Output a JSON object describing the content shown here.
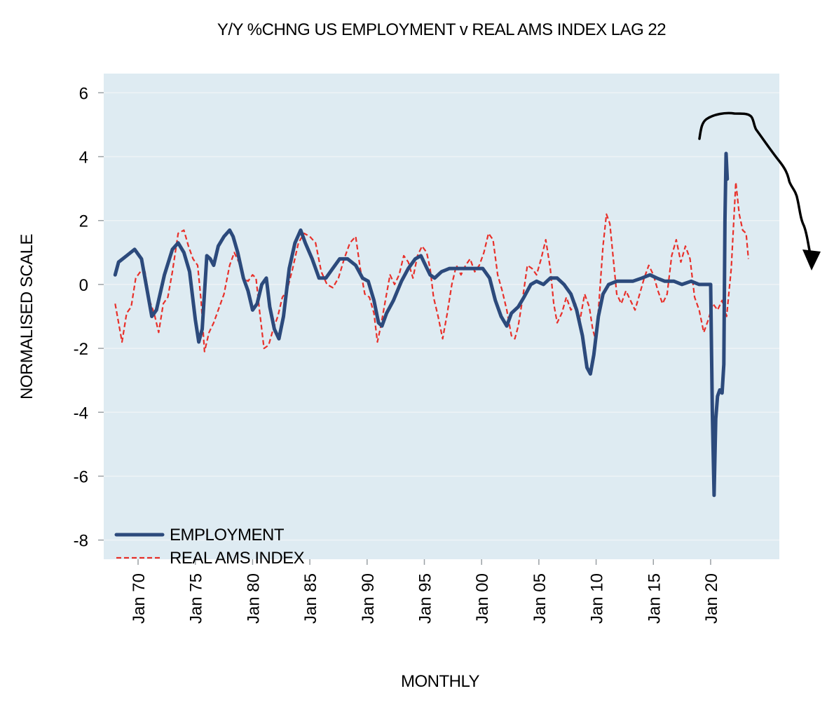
{
  "chart_data": {
    "type": "line",
    "title": "Y/Y %CHNG US EMPLOYMENT v REAL AMS INDEX LAG 22",
    "xlabel": "MONTHLY",
    "ylabel": "NORMALISED SCALE",
    "ylim": [
      -8.6,
      6.6
    ],
    "xlim": [
      1967,
      2026
    ],
    "yticks": [
      6,
      4,
      2,
      0,
      -2,
      -4,
      -6,
      -8
    ],
    "ytick_labels": [
      "6",
      "4",
      "2",
      "0",
      "-2",
      "-4",
      "-6",
      "-8"
    ],
    "xticks": [
      1970,
      1975,
      1980,
      1985,
      1990,
      1995,
      2000,
      2005,
      2010,
      2015,
      2020
    ],
    "xtick_labels": [
      "Jan 70",
      "Jan 75",
      "Jan 80",
      "Jan 85",
      "Jan 90",
      "Jan 95",
      "Jan 00",
      "Jan 05",
      "Jan 10",
      "Jan 15",
      "Jan 20"
    ],
    "grid": "horizontal",
    "background": "#deebf2",
    "legend_position": "bottom-left",
    "annotation": "hand-drawn black arrow pointing down (top-right)",
    "series": [
      {
        "name": "EMPLOYMENT",
        "color": "#2c4a7c",
        "style": "solid",
        "x": [
          1968.0,
          1968.3,
          1969.0,
          1969.7,
          1970.3,
          1970.8,
          1971.2,
          1971.6,
          1972.3,
          1973.0,
          1973.5,
          1974.0,
          1974.5,
          1975.0,
          1975.3,
          1975.6,
          1976.0,
          1976.3,
          1976.6,
          1977.0,
          1977.5,
          1978.0,
          1978.3,
          1978.7,
          1979.2,
          1979.6,
          1980.0,
          1980.4,
          1980.8,
          1981.2,
          1981.5,
          1981.9,
          1982.3,
          1982.7,
          1983.2,
          1983.7,
          1984.2,
          1984.6,
          1985.2,
          1985.8,
          1986.4,
          1987.0,
          1987.6,
          1988.3,
          1989.0,
          1989.6,
          1990.1,
          1990.6,
          1991.0,
          1991.3,
          1991.7,
          1992.3,
          1993.0,
          1993.6,
          1994.2,
          1994.7,
          1995.1,
          1995.5,
          1995.9,
          1996.5,
          1997.2,
          1998.0,
          1998.7,
          1999.4,
          2000.1,
          2000.7,
          2001.2,
          2001.7,
          2002.2,
          2002.6,
          2003.2,
          2003.7,
          2004.3,
          2004.8,
          2005.4,
          2006.0,
          2006.6,
          2007.2,
          2007.8,
          2008.3,
          2008.8,
          2009.2,
          2009.5,
          2009.8,
          2010.2,
          2010.6,
          2011.1,
          2011.8,
          2012.5,
          2013.2,
          2014.0,
          2014.7,
          2015.3,
          2016.0,
          2016.8,
          2017.5,
          2018.3,
          2019.0,
          2019.6,
          2020.0,
          2020.15,
          2020.3,
          2020.45,
          2020.6,
          2020.8,
          2021.0,
          2021.15,
          2021.25,
          2021.35,
          2021.45
        ],
        "values": [
          0.3,
          0.7,
          0.9,
          1.1,
          0.8,
          -0.2,
          -1.0,
          -0.8,
          0.3,
          1.1,
          1.3,
          1.0,
          0.4,
          -1.1,
          -1.8,
          -1.4,
          0.9,
          0.8,
          0.6,
          1.2,
          1.5,
          1.7,
          1.5,
          1.0,
          0.2,
          -0.2,
          -0.8,
          -0.6,
          0.0,
          0.2,
          -0.7,
          -1.4,
          -1.7,
          -1.0,
          0.5,
          1.3,
          1.7,
          1.3,
          0.8,
          0.2,
          0.2,
          0.5,
          0.8,
          0.8,
          0.6,
          0.2,
          0.1,
          -0.5,
          -1.2,
          -1.3,
          -0.9,
          -0.5,
          0.1,
          0.5,
          0.8,
          0.9,
          0.6,
          0.3,
          0.2,
          0.4,
          0.5,
          0.5,
          0.5,
          0.5,
          0.5,
          0.2,
          -0.5,
          -1.0,
          -1.3,
          -0.9,
          -0.7,
          -0.4,
          0.0,
          0.1,
          0.0,
          0.2,
          0.2,
          0.0,
          -0.3,
          -0.8,
          -1.6,
          -2.6,
          -2.8,
          -2.2,
          -1.0,
          -0.3,
          0.0,
          0.1,
          0.1,
          0.1,
          0.2,
          0.3,
          0.2,
          0.1,
          0.1,
          0.0,
          0.1,
          0.0,
          0.0,
          0.0,
          -4.0,
          -6.6,
          -4.2,
          -3.5,
          -3.3,
          -3.4,
          -2.5,
          2.0,
          4.1,
          3.3
        ]
      },
      {
        "name": "REAL AMS INDEX",
        "color": "#e8302a",
        "style": "dashed",
        "x": [
          1968.0,
          1968.3,
          1968.6,
          1969.0,
          1969.4,
          1969.8,
          1970.2,
          1970.6,
          1971.0,
          1971.4,
          1971.8,
          1972.2,
          1972.6,
          1973.0,
          1973.5,
          1974.0,
          1974.4,
          1974.8,
          1975.2,
          1975.5,
          1975.8,
          1976.2,
          1976.6,
          1977.0,
          1977.5,
          1978.0,
          1978.4,
          1978.8,
          1979.2,
          1979.6,
          1980.0,
          1980.3,
          1980.6,
          1981.0,
          1981.4,
          1981.8,
          1982.2,
          1982.6,
          1983.0,
          1983.5,
          1984.0,
          1984.5,
          1985.0,
          1985.5,
          1986.0,
          1986.5,
          1987.0,
          1987.5,
          1988.0,
          1988.5,
          1989.0,
          1989.4,
          1989.8,
          1990.2,
          1990.6,
          1990.9,
          1991.2,
          1991.6,
          1992.0,
          1992.4,
          1992.8,
          1993.2,
          1993.6,
          1994.0,
          1994.4,
          1994.8,
          1995.2,
          1995.5,
          1995.8,
          1996.2,
          1996.6,
          1997.0,
          1997.4,
          1997.8,
          1998.2,
          1998.6,
          1999.0,
          1999.4,
          1999.8,
          2000.2,
          2000.6,
          2001.0,
          2001.4,
          2001.8,
          2002.2,
          2002.6,
          2002.9,
          2003.2,
          2003.6,
          2004.0,
          2004.4,
          2004.8,
          2005.2,
          2005.6,
          2006.0,
          2006.3,
          2006.6,
          2007.0,
          2007.4,
          2007.8,
          2008.2,
          2008.6,
          2009.0,
          2009.4,
          2009.7,
          2010.0,
          2010.3,
          2010.6,
          2010.9,
          2011.2,
          2011.5,
          2011.8,
          2012.2,
          2012.6,
          2013.0,
          2013.4,
          2013.8,
          2014.2,
          2014.6,
          2015.0,
          2015.4,
          2015.8,
          2016.2,
          2016.6,
          2017.0,
          2017.4,
          2017.8,
          2018.2,
          2018.6,
          2019.0,
          2019.4,
          2019.8,
          2020.2,
          2020.6,
          2021.0,
          2021.4,
          2021.8,
          2022.2,
          2022.5,
          2022.8,
          2023.1,
          2023.3
        ],
        "values": [
          -0.6,
          -1.2,
          -1.8,
          -0.9,
          -0.7,
          0.2,
          0.4,
          0.4,
          -0.5,
          -0.9,
          -1.5,
          -0.6,
          -0.4,
          0.4,
          1.6,
          1.7,
          1.2,
          0.8,
          0.6,
          -0.5,
          -2.1,
          -1.5,
          -1.2,
          -0.8,
          -0.3,
          0.6,
          1.0,
          0.7,
          0.2,
          0.1,
          0.3,
          0.2,
          -0.8,
          -2.0,
          -1.9,
          -1.4,
          -1.0,
          -0.4,
          -0.2,
          0.5,
          1.3,
          1.6,
          1.5,
          1.3,
          0.4,
          0.0,
          -0.1,
          0.2,
          0.8,
          1.3,
          1.5,
          0.5,
          -0.3,
          -0.4,
          -0.9,
          -1.8,
          -1.3,
          -0.5,
          0.3,
          0.0,
          0.3,
          0.9,
          0.7,
          0.2,
          0.9,
          1.2,
          1.0,
          0.5,
          -0.4,
          -1.0,
          -1.7,
          -0.9,
          0.0,
          0.6,
          0.3,
          0.6,
          0.8,
          0.4,
          0.6,
          1.0,
          1.6,
          1.4,
          0.3,
          -0.2,
          -0.8,
          -1.6,
          -1.7,
          -1.3,
          -0.4,
          0.6,
          0.5,
          0.3,
          0.8,
          1.4,
          0.5,
          -0.6,
          -1.2,
          -0.9,
          -0.4,
          -0.8,
          -0.6,
          -1.1,
          -0.3,
          -0.7,
          -1.4,
          -1.8,
          -0.3,
          1.2,
          2.2,
          1.9,
          0.8,
          -0.3,
          -0.6,
          -0.2,
          -0.5,
          -0.8,
          -0.3,
          0.2,
          0.6,
          0.3,
          -0.2,
          -0.6,
          -0.3,
          0.9,
          1.4,
          0.7,
          1.2,
          0.8,
          -0.4,
          -0.8,
          -1.5,
          -1.1,
          -0.6,
          -0.8,
          -0.5,
          -1.0,
          0.5,
          3.2,
          2.2,
          1.7,
          1.6,
          0.8
        ]
      }
    ]
  }
}
